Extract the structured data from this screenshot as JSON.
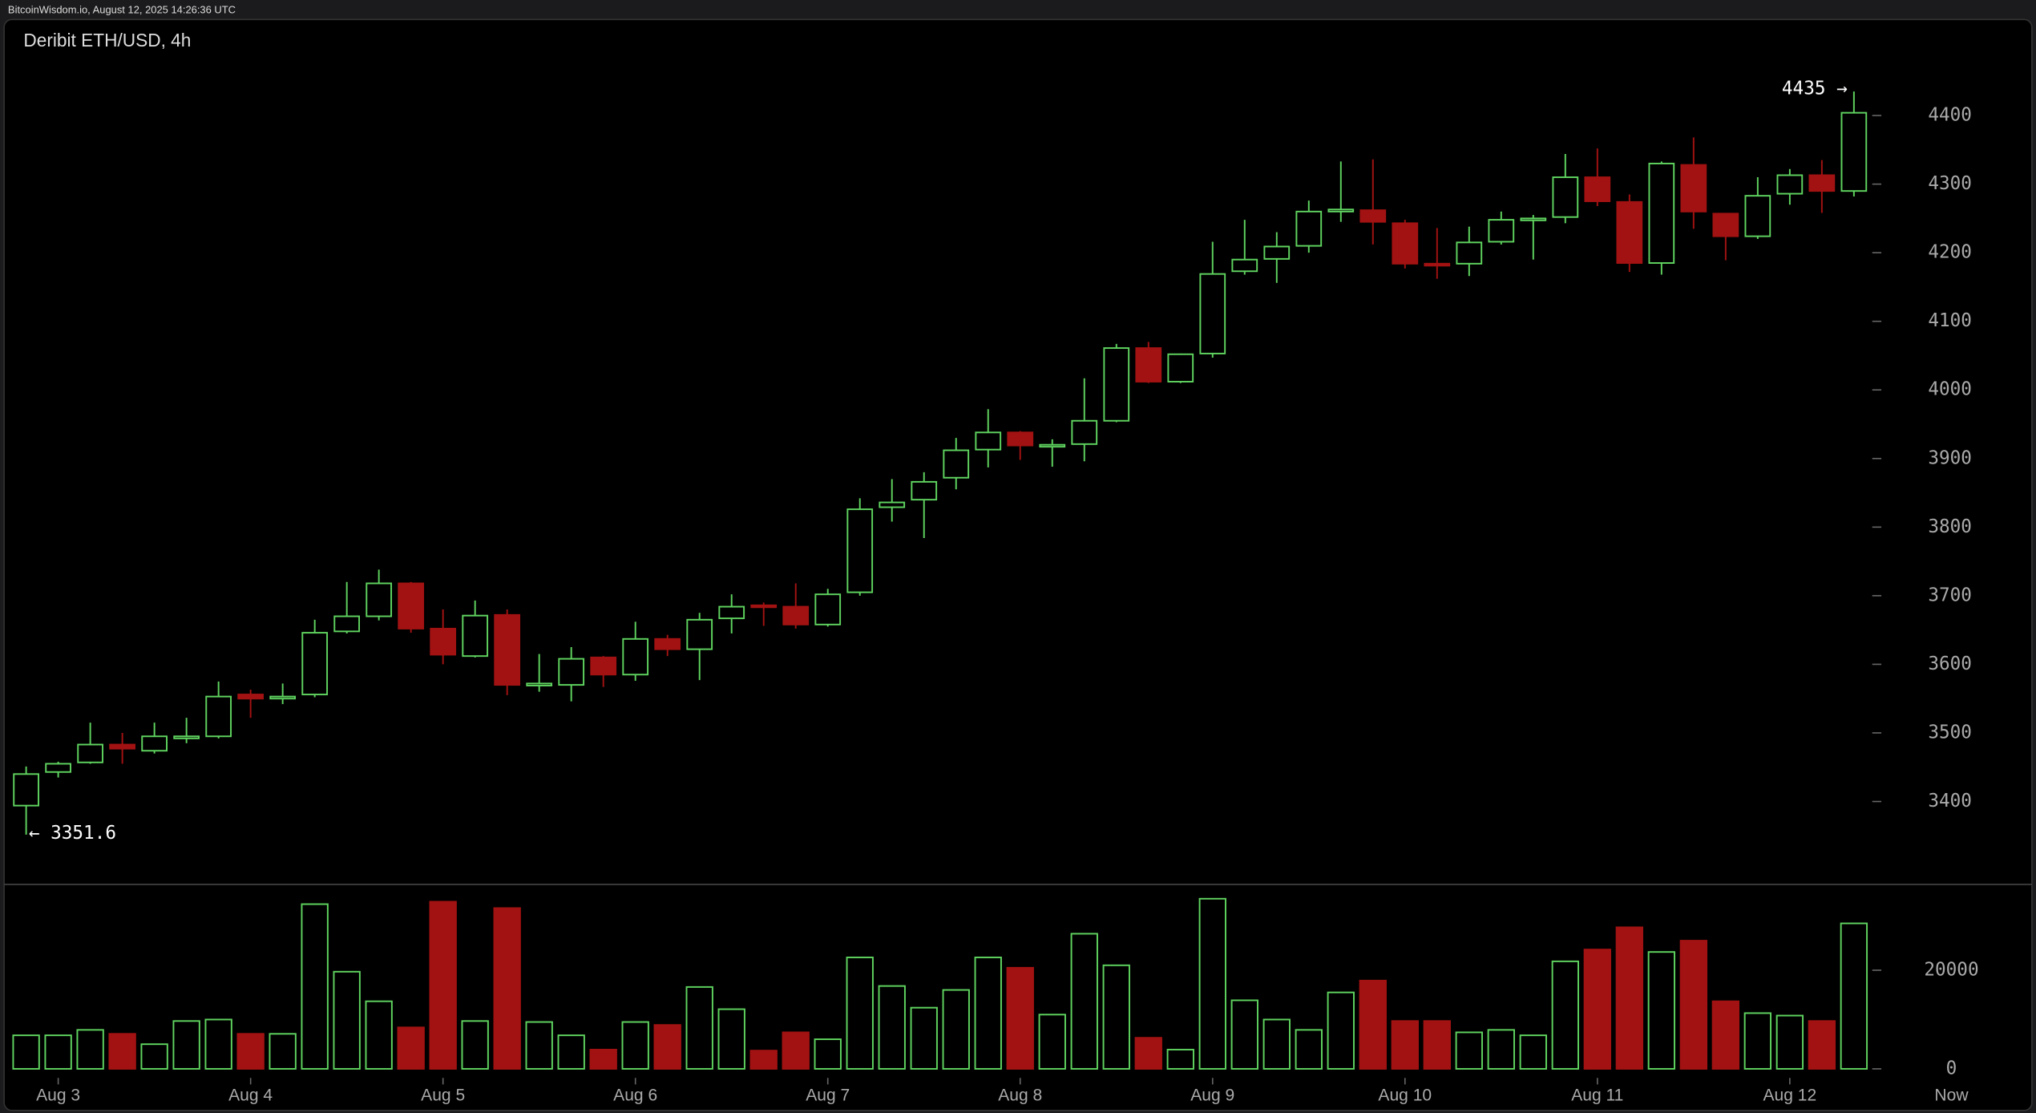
{
  "header": "BitcoinWisdom.io, August 12, 2025 14:26:36 UTC",
  "chart_data": [
    {
      "type": "candlestick",
      "title": "Deribit ETH/USD, 4h",
      "categories": [
        null,
        "Aug 3",
        null,
        null,
        null,
        null,
        null,
        "Aug 4",
        null,
        null,
        null,
        null,
        null,
        "Aug 5",
        null,
        null,
        null,
        null,
        null,
        "Aug 6",
        null,
        null,
        null,
        null,
        null,
        "Aug 7",
        null,
        null,
        null,
        null,
        null,
        "Aug 8",
        null,
        null,
        null,
        null,
        null,
        "Aug 9",
        null,
        null,
        null,
        null,
        null,
        "Aug 10",
        null,
        null,
        null,
        null,
        null,
        "Aug 11",
        null,
        null,
        null,
        null,
        null,
        "Aug 12",
        null,
        null
      ],
      "now_label": "Now",
      "open": [
        3394,
        3443,
        3457,
        3483,
        3474,
        3492,
        3495,
        3556,
        3550,
        3556,
        3648,
        3670,
        3718,
        3652,
        3612,
        3672,
        3569,
        3570,
        3610,
        3585,
        3637,
        3622,
        3667,
        3686,
        3684,
        3658,
        3705,
        3829,
        3840,
        3872,
        3913,
        3938,
        3918,
        3921,
        3955,
        4061,
        4012,
        4053,
        4173,
        4191,
        4210,
        4260,
        4262,
        4243,
        4184,
        4184,
        4216,
        4248,
        4252,
        4310,
        4274,
        4185,
        4328,
        4257,
        4224,
        4286,
        4313,
        4290
      ],
      "high": [
        3451,
        3458,
        3515,
        3500,
        3515,
        3522,
        3575,
        3563,
        3572,
        3665,
        3720,
        3738,
        3720,
        3680,
        3693,
        3680,
        3615,
        3625,
        3612,
        3662,
        3643,
        3675,
        3702,
        3690,
        3718,
        3710,
        3842,
        3870,
        3880,
        3930,
        3972,
        3940,
        3928,
        4017,
        4067,
        4070,
        4053,
        4216,
        4248,
        4230,
        4276,
        4333,
        4336,
        4248,
        4236,
        4238,
        4260,
        4255,
        4344,
        4352,
        4285,
        4333,
        4368,
        4257,
        4310,
        4322,
        4335,
        4435
      ],
      "low": [
        3351.6,
        3435,
        3455,
        3455,
        3470,
        3485,
        3492,
        3522,
        3542,
        3552,
        3645,
        3664,
        3646,
        3600,
        3610,
        3555,
        3560,
        3546,
        3567,
        3576,
        3612,
        3577,
        3645,
        3656,
        3652,
        3655,
        3700,
        3808,
        3784,
        3855,
        3887,
        3898,
        3888,
        3896,
        3953,
        4010,
        4010,
        4047,
        4168,
        4156,
        4200,
        4245,
        4212,
        4177,
        4162,
        4166,
        4212,
        4190,
        4243,
        4268,
        4172,
        4168,
        4235,
        4189,
        4220,
        4270,
        4258,
        4282
      ],
      "close": [
        3440,
        3455,
        3483,
        3477,
        3495,
        3495,
        3553,
        3550,
        3553,
        3646,
        3670,
        3718,
        3652,
        3614,
        3671,
        3570,
        3572,
        3608,
        3585,
        3637,
        3622,
        3665,
        3684,
        3684,
        3658,
        3702,
        3826,
        3836,
        3866,
        3912,
        3938,
        3919,
        3920,
        3955,
        4061,
        4012,
        4052,
        4169,
        4190,
        4209,
        4260,
        4263,
        4245,
        4184,
        4182,
        4215,
        4248,
        4250,
        4310,
        4275,
        4185,
        4330,
        4260,
        4224,
        4283,
        4313,
        4290,
        4404
      ],
      "high_label": "4435 →",
      "low_label": "← 3351.6",
      "up_color": "#5fd35f",
      "down_color": "#a31212",
      "ylim": [
        3281,
        4540
      ],
      "yticks": [
        3400,
        3500,
        3600,
        3700,
        3800,
        3900,
        4000,
        4100,
        4200,
        4300,
        4400
      ]
    },
    {
      "type": "volume",
      "values": [
        6800,
        6800,
        7900,
        7100,
        5000,
        9700,
        10000,
        7100,
        7100,
        33400,
        19700,
        13700,
        8400,
        33900,
        9700,
        32600,
        9500,
        6800,
        3900,
        9500,
        8900,
        16600,
        12100,
        3700,
        7400,
        6000,
        22600,
        16800,
        12400,
        16000,
        22600,
        20500,
        11000,
        27400,
        21000,
        6300,
        3900,
        34500,
        13900,
        10000,
        7900,
        15500,
        17900,
        9700,
        9700,
        7400,
        7900,
        6800,
        21800,
        24200,
        28700,
        23700,
        26000,
        13700,
        11300,
        10800,
        9700,
        29500
      ],
      "ylim": [
        0,
        37400
      ],
      "yticks": [
        0,
        20000
      ]
    }
  ]
}
